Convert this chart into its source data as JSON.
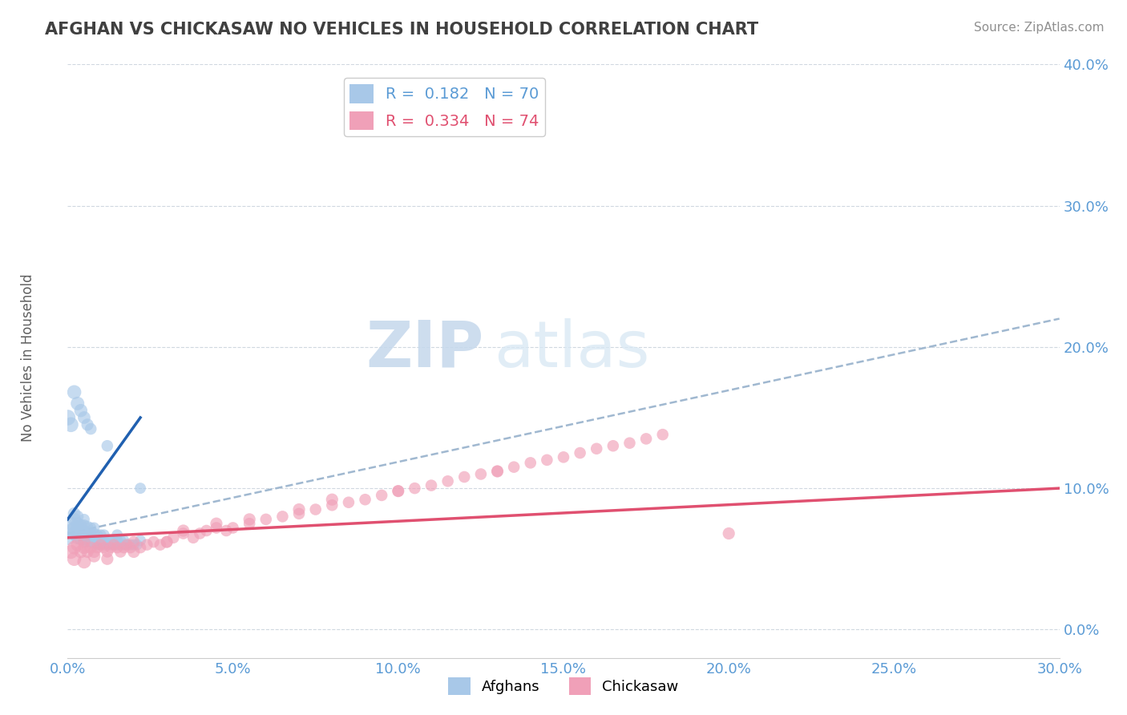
{
  "title": "AFGHAN VS CHICKASAW NO VEHICLES IN HOUSEHOLD CORRELATION CHART",
  "source": "Source: ZipAtlas.com",
  "xlim": [
    0.0,
    0.3
  ],
  "ylim": [
    -0.02,
    0.4
  ],
  "legend_afghan": "R =  0.182   N = 70",
  "legend_chickasaw": "R =  0.334   N = 74",
  "afghan_color": "#a8c8e8",
  "chickasaw_color": "#f0a0b8",
  "afghan_line_color": "#2060b0",
  "chickasaw_line_color": "#e05070",
  "dash_line_color": "#a0b8d0",
  "watermark_zip": "ZIP",
  "watermark_atlas": "atlas",
  "tick_color": "#5b9bd5",
  "afghan_scatter_x": [
    0.0,
    0.001,
    0.001,
    0.002,
    0.002,
    0.002,
    0.002,
    0.003,
    0.003,
    0.003,
    0.003,
    0.003,
    0.004,
    0.004,
    0.004,
    0.004,
    0.005,
    0.005,
    0.005,
    0.005,
    0.005,
    0.006,
    0.006,
    0.006,
    0.006,
    0.007,
    0.007,
    0.007,
    0.007,
    0.008,
    0.008,
    0.008,
    0.008,
    0.009,
    0.009,
    0.009,
    0.01,
    0.01,
    0.01,
    0.011,
    0.011,
    0.011,
    0.012,
    0.012,
    0.013,
    0.013,
    0.014,
    0.014,
    0.015,
    0.015,
    0.015,
    0.016,
    0.016,
    0.017,
    0.017,
    0.018,
    0.019,
    0.02,
    0.021,
    0.022,
    0.0,
    0.001,
    0.002,
    0.003,
    0.004,
    0.005,
    0.006,
    0.007,
    0.012,
    0.022
  ],
  "afghan_scatter_y": [
    0.065,
    0.07,
    0.075,
    0.068,
    0.072,
    0.078,
    0.082,
    0.065,
    0.068,
    0.072,
    0.075,
    0.08,
    0.064,
    0.067,
    0.07,
    0.074,
    0.063,
    0.066,
    0.07,
    0.074,
    0.078,
    0.062,
    0.065,
    0.069,
    0.073,
    0.062,
    0.065,
    0.068,
    0.072,
    0.061,
    0.064,
    0.068,
    0.072,
    0.06,
    0.063,
    0.067,
    0.06,
    0.063,
    0.067,
    0.06,
    0.063,
    0.067,
    0.06,
    0.063,
    0.06,
    0.063,
    0.06,
    0.063,
    0.06,
    0.063,
    0.067,
    0.06,
    0.063,
    0.06,
    0.063,
    0.06,
    0.06,
    0.06,
    0.06,
    0.063,
    0.15,
    0.145,
    0.168,
    0.16,
    0.155,
    0.15,
    0.145,
    0.142,
    0.13,
    0.1
  ],
  "chickasaw_scatter_x": [
    0.001,
    0.002,
    0.003,
    0.004,
    0.005,
    0.005,
    0.006,
    0.007,
    0.008,
    0.009,
    0.01,
    0.011,
    0.012,
    0.013,
    0.014,
    0.015,
    0.016,
    0.017,
    0.018,
    0.019,
    0.02,
    0.022,
    0.024,
    0.026,
    0.028,
    0.03,
    0.032,
    0.035,
    0.038,
    0.04,
    0.042,
    0.045,
    0.048,
    0.05,
    0.055,
    0.06,
    0.065,
    0.07,
    0.075,
    0.08,
    0.085,
    0.09,
    0.095,
    0.1,
    0.105,
    0.11,
    0.115,
    0.12,
    0.125,
    0.13,
    0.135,
    0.14,
    0.145,
    0.15,
    0.155,
    0.16,
    0.165,
    0.17,
    0.175,
    0.18,
    0.002,
    0.005,
    0.008,
    0.012,
    0.02,
    0.03,
    0.035,
    0.045,
    0.055,
    0.07,
    0.08,
    0.1,
    0.13,
    0.2
  ],
  "chickasaw_scatter_y": [
    0.055,
    0.058,
    0.06,
    0.055,
    0.058,
    0.062,
    0.055,
    0.058,
    0.055,
    0.058,
    0.06,
    0.058,
    0.055,
    0.058,
    0.06,
    0.058,
    0.055,
    0.058,
    0.06,
    0.058,
    0.062,
    0.058,
    0.06,
    0.062,
    0.06,
    0.062,
    0.065,
    0.068,
    0.065,
    0.068,
    0.07,
    0.072,
    0.07,
    0.072,
    0.075,
    0.078,
    0.08,
    0.082,
    0.085,
    0.088,
    0.09,
    0.092,
    0.095,
    0.098,
    0.1,
    0.102,
    0.105,
    0.108,
    0.11,
    0.112,
    0.115,
    0.118,
    0.12,
    0.122,
    0.125,
    0.128,
    0.13,
    0.132,
    0.135,
    0.138,
    0.05,
    0.048,
    0.052,
    0.05,
    0.055,
    0.062,
    0.07,
    0.075,
    0.078,
    0.085,
    0.092,
    0.098,
    0.112,
    0.068
  ],
  "afghan_dot_sizes": [
    180,
    160,
    160,
    150,
    140,
    140,
    130,
    140,
    130,
    130,
    130,
    120,
    130,
    120,
    120,
    110,
    120,
    110,
    110,
    100,
    100,
    110,
    100,
    100,
    100,
    100,
    100,
    100,
    100,
    100,
    100,
    100,
    100,
    100,
    100,
    100,
    100,
    100,
    100,
    100,
    100,
    100,
    100,
    100,
    100,
    100,
    100,
    100,
    100,
    100,
    100,
    100,
    100,
    100,
    100,
    100,
    100,
    100,
    100,
    100,
    200,
    180,
    160,
    150,
    140,
    130,
    120,
    110,
    110,
    100
  ],
  "chickasaw_dot_sizes": [
    160,
    150,
    140,
    130,
    130,
    120,
    120,
    120,
    120,
    110,
    110,
    110,
    110,
    110,
    110,
    110,
    110,
    110,
    110,
    110,
    110,
    110,
    110,
    110,
    110,
    110,
    110,
    110,
    110,
    110,
    110,
    110,
    110,
    110,
    110,
    110,
    110,
    110,
    110,
    110,
    110,
    110,
    110,
    110,
    110,
    110,
    110,
    110,
    110,
    110,
    110,
    110,
    110,
    110,
    110,
    110,
    110,
    110,
    110,
    110,
    160,
    150,
    130,
    120,
    120,
    120,
    120,
    120,
    120,
    120,
    120,
    120,
    120,
    120
  ]
}
